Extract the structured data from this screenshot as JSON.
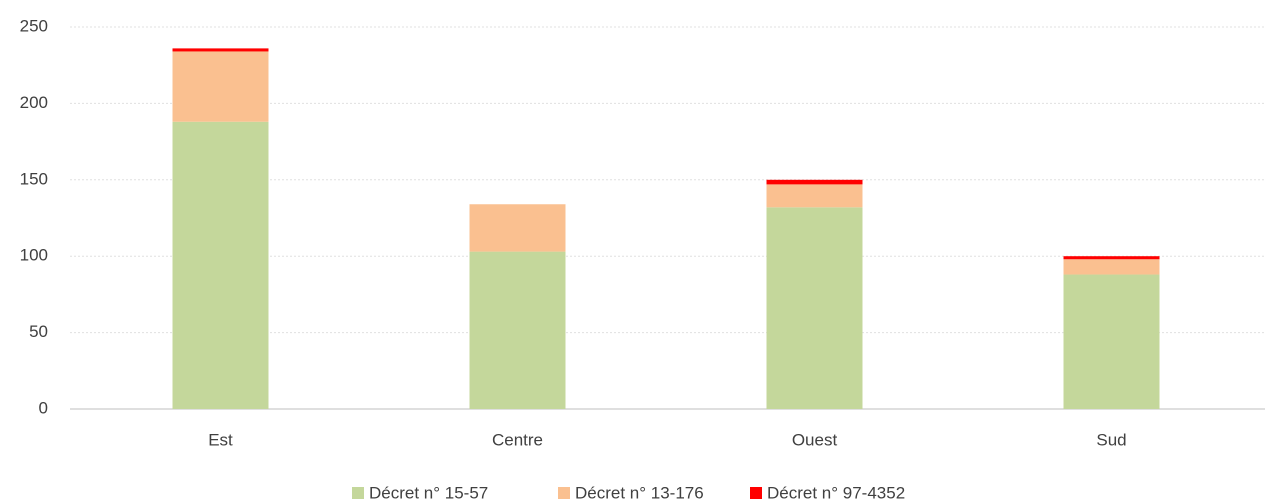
{
  "chart_data": {
    "type": "bar",
    "stacked": true,
    "categories": [
      "Est",
      "Centre",
      "Ouest",
      "Sud"
    ],
    "series": [
      {
        "name": "Décret n° 15-57",
        "color": "#c4d79b",
        "values": [
          188,
          103,
          132,
          88
        ]
      },
      {
        "name": "Décret n° 13-176",
        "color": "#fac090",
        "values": [
          46,
          31,
          15,
          10
        ]
      },
      {
        "name": "Décret n° 97-4352",
        "color": "#ff0000",
        "values": [
          2,
          0,
          3,
          2
        ]
      }
    ],
    "ylim": [
      0,
      250
    ],
    "yticks": [
      0,
      50,
      100,
      150,
      200,
      250
    ],
    "grid": true,
    "legend": "bottom"
  }
}
